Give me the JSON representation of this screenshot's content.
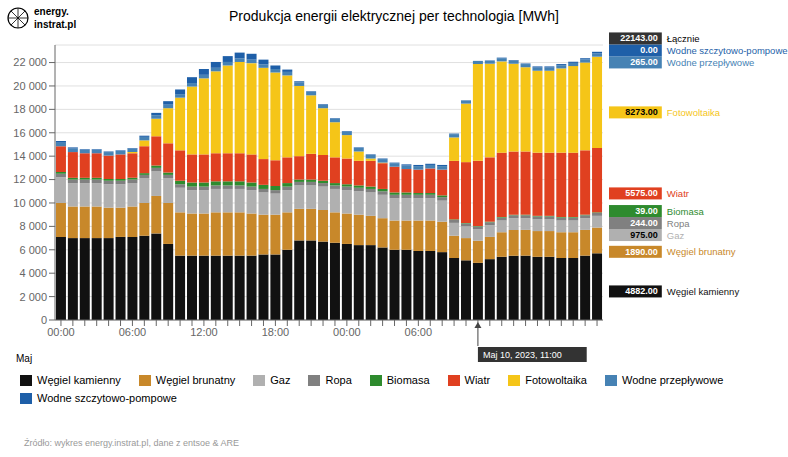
{
  "chart_data": {
    "type": "bar",
    "stacked": true,
    "grid": true,
    "legend": "bottom",
    "title": "Produkcja energii elektrycznej per technologia [MWh]",
    "xlabel": "Maj",
    "source": "Źródło: wykres energy.instrat.pl, dane z entsoe & ARE",
    "logo": [
      "energy.",
      "instrat.pl"
    ],
    "categories": [
      "00:00",
      null,
      null,
      null,
      null,
      null,
      "06:00",
      null,
      null,
      null,
      null,
      null,
      "12:00",
      null,
      null,
      null,
      null,
      null,
      "18:00",
      null,
      null,
      null,
      null,
      null,
      "00:00",
      null,
      null,
      null,
      null,
      null,
      "06:00",
      null,
      null,
      null,
      null,
      null,
      null,
      null,
      null,
      null,
      null,
      null,
      null,
      null,
      null,
      null
    ],
    "ylim": [
      0,
      23500
    ],
    "yticks": [
      0,
      {
        "value": 2000,
        "label": "2 000"
      },
      {
        "value": 4000,
        "label": "4 000"
      },
      {
        "value": 6000,
        "label": "6 000"
      },
      {
        "value": 8000,
        "label": "8 000"
      },
      {
        "value": 10000,
        "label": "10 000"
      },
      {
        "value": 12000,
        "label": "12 000"
      },
      {
        "value": 14000,
        "label": "14 000"
      },
      {
        "value": 16000,
        "label": "16 000"
      },
      {
        "value": 18000,
        "label": "18 000"
      },
      {
        "value": 20000,
        "label": "20 000"
      },
      {
        "value": 22000,
        "label": "22 000"
      }
    ],
    "series": [
      {
        "name": "Węgiel kamienny",
        "color": "#111111",
        "values": [
          7100,
          7000,
          7000,
          7000,
          7000,
          7100,
          7100,
          7200,
          7400,
          6500,
          5500,
          5500,
          5500,
          5500,
          5500,
          5500,
          5500,
          5600,
          5600,
          6000,
          6800,
          6800,
          6700,
          6600,
          6500,
          6400,
          6400,
          6200,
          6000,
          6000,
          5900,
          5900,
          5800,
          5300,
          5100,
          4882,
          5200,
          5400,
          5500,
          5500,
          5400,
          5400,
          5300,
          5300,
          5500,
          5700
        ]
      },
      {
        "name": "Węgiel brunatny",
        "color": "#c8882a",
        "values": [
          2900,
          2700,
          2700,
          2700,
          2600,
          2500,
          2600,
          2800,
          3200,
          3500,
          3700,
          3600,
          3600,
          3700,
          3700,
          3700,
          3600,
          3400,
          3400,
          3200,
          2700,
          2700,
          2700,
          2600,
          2600,
          2600,
          2500,
          2500,
          2500,
          2500,
          2600,
          2600,
          2600,
          1900,
          1900,
          1890,
          1900,
          2100,
          2200,
          2200,
          2200,
          2200,
          2200,
          2200,
          2200,
          2200
        ]
      },
      {
        "name": "Gaz",
        "color": "#b0b0b0",
        "values": [
          2200,
          2000,
          2000,
          2000,
          2000,
          2000,
          2000,
          2100,
          2100,
          2100,
          2100,
          2000,
          2000,
          2000,
          2000,
          2000,
          2000,
          1900,
          1800,
          1900,
          2000,
          2000,
          2000,
          2000,
          2000,
          2000,
          2000,
          2000,
          1900,
          1900,
          1900,
          1900,
          1800,
          1100,
          1000,
          975,
          1000,
          1000,
          1000,
          1000,
          1000,
          1000,
          1000,
          1000,
          1000,
          1000
        ]
      },
      {
        "name": "Ropa",
        "color": "#808080",
        "values": [
          300,
          300,
          300,
          300,
          300,
          300,
          300,
          300,
          300,
          300,
          300,
          300,
          300,
          300,
          300,
          300,
          300,
          300,
          300,
          300,
          300,
          300,
          300,
          300,
          300,
          300,
          300,
          300,
          300,
          300,
          300,
          300,
          300,
          250,
          250,
          244,
          250,
          250,
          250,
          250,
          250,
          250,
          250,
          250,
          250,
          250
        ]
      },
      {
        "name": "Biomasa",
        "color": "#2e8b2e",
        "values": [
          150,
          150,
          150,
          150,
          150,
          150,
          150,
          150,
          200,
          200,
          300,
          350,
          350,
          350,
          350,
          350,
          350,
          350,
          350,
          300,
          200,
          200,
          200,
          200,
          200,
          200,
          200,
          200,
          200,
          200,
          150,
          150,
          150,
          50,
          40,
          39,
          50,
          50,
          50,
          50,
          50,
          50,
          50,
          50,
          50,
          50
        ]
      },
      {
        "name": "Wiatr",
        "color": "#e04020",
        "values": [
          2200,
          2200,
          2100,
          2100,
          2000,
          2100,
          2100,
          2300,
          2500,
          2500,
          2600,
          2400,
          2400,
          2400,
          2400,
          2400,
          2400,
          2200,
          2200,
          2200,
          2000,
          2200,
          2200,
          2200,
          2200,
          2100,
          2200,
          2200,
          2200,
          2000,
          2000,
          2100,
          2200,
          5000,
          5200,
          5575,
          5500,
          5500,
          5400,
          5400,
          5400,
          5400,
          5500,
          5500,
          5500,
          5500
        ]
      },
      {
        "name": "Fotowoltaika",
        "color": "#f5c518",
        "values": [
          0,
          0,
          0,
          0,
          0,
          0,
          100,
          500,
          1500,
          3000,
          4500,
          5800,
          6500,
          7000,
          7500,
          7800,
          7800,
          7800,
          7500,
          7000,
          6000,
          5000,
          4000,
          3000,
          2000,
          800,
          200,
          50,
          0,
          0,
          0,
          0,
          0,
          2000,
          5000,
          8273,
          8000,
          7800,
          7500,
          7200,
          7000,
          7000,
          7200,
          7400,
          7500,
          7800
        ]
      },
      {
        "name": "Wodne przepływowe",
        "color": "#4682b4",
        "values": [
          300,
          300,
          300,
          300,
          300,
          300,
          300,
          300,
          300,
          300,
          300,
          300,
          300,
          300,
          300,
          300,
          300,
          300,
          300,
          300,
          300,
          300,
          300,
          300,
          300,
          300,
          300,
          300,
          300,
          300,
          300,
          300,
          300,
          280,
          270,
          265,
          270,
          270,
          270,
          270,
          270,
          270,
          270,
          270,
          270,
          270
        ]
      },
      {
        "name": "Wodne szczytowo-pompowe",
        "color": "#1e5fa8",
        "values": [
          150,
          100,
          50,
          50,
          50,
          50,
          50,
          100,
          200,
          300,
          400,
          500,
          500,
          500,
          500,
          500,
          500,
          400,
          300,
          200,
          100,
          50,
          50,
          50,
          50,
          50,
          50,
          50,
          50,
          100,
          100,
          100,
          100,
          50,
          20,
          0,
          20,
          50,
          50,
          50,
          100,
          100,
          100,
          100,
          100,
          150
        ]
      }
    ],
    "highlight": {
      "category_index": 35,
      "label": "Maj 10, 2023, 11:00",
      "values": [
        4882.0,
        1890.0,
        975.0,
        244.0,
        39.0,
        5575.0,
        8273.0,
        265.0,
        0.0
      ],
      "value_labels": [
        "4882.00",
        "1890.00",
        "975.00",
        "244.00",
        "39.00",
        "5575.00",
        "8273.00",
        "265.00",
        "0.00"
      ],
      "total": 22143.0,
      "total_label": "22143.00",
      "total_name": "Łącznie"
    }
  }
}
